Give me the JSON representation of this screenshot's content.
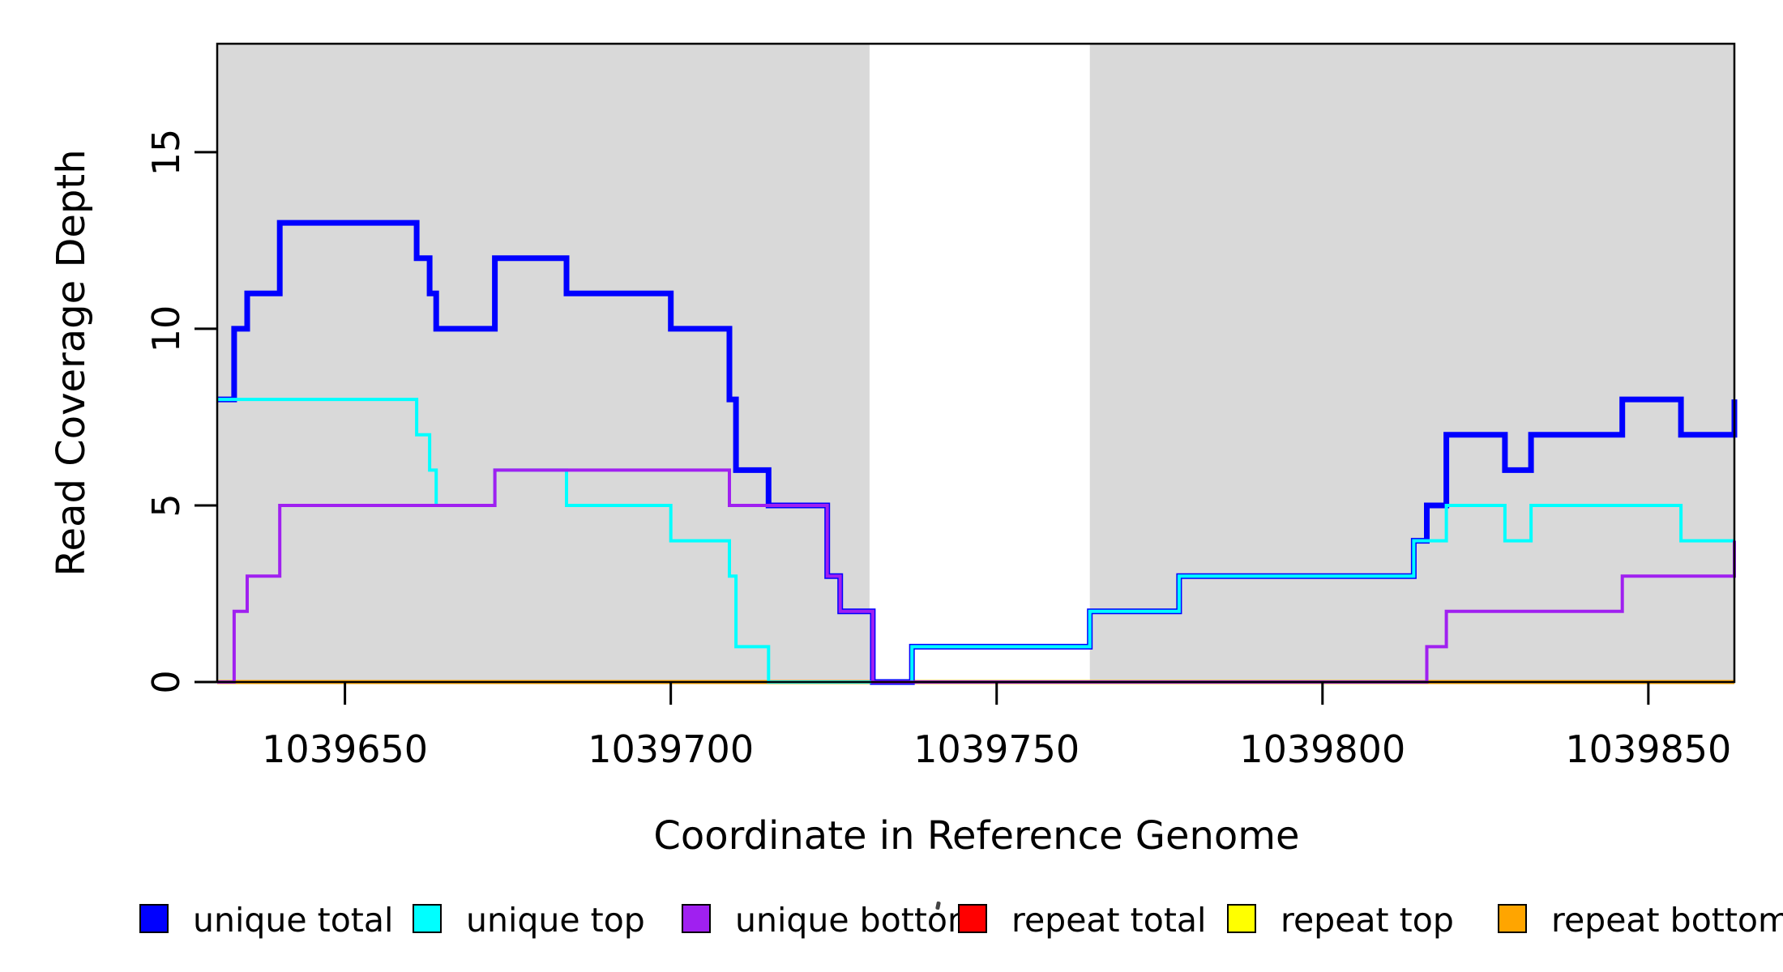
{
  "figure": {
    "x_axis_label": "Coordinate in Reference Genome",
    "y_axis_label": "Read Coverage Depth"
  },
  "x_axis": {
    "ticks": [
      {
        "label": "1039650",
        "value": 1039650
      },
      {
        "label": "1039700",
        "value": 1039700
      },
      {
        "label": "1039750",
        "value": 1039750
      },
      {
        "label": "1039800",
        "value": 1039800
      },
      {
        "label": "1039850",
        "value": 1039850
      }
    ]
  },
  "y_axis": {
    "ticks": [
      {
        "label": "0",
        "value": 0
      },
      {
        "label": "5",
        "value": 5
      },
      {
        "label": "10",
        "value": 10
      },
      {
        "label": "15",
        "value": 15
      }
    ]
  },
  "legend": [
    {
      "label": "unique total",
      "color": "#0000FF"
    },
    {
      "label": "unique top",
      "color": "#00FFFF"
    },
    {
      "label": "unique bottom",
      "color": "#A020F0"
    },
    {
      "label": "repeat total",
      "color": "#FF0000"
    },
    {
      "label": "repeat top",
      "color": "#FFFF00"
    },
    {
      "label": "repeat bottom",
      "color": "#FFA500"
    }
  ],
  "chart_data": {
    "type": "line",
    "style": "step-after",
    "title": "",
    "xlabel": "Coordinate in Reference Genome",
    "ylabel": "Read Coverage Depth",
    "xlim": [
      1039630.4,
      1039863.2
    ],
    "ylim": [
      0,
      18.07
    ],
    "grid": false,
    "legend_position": "bottom",
    "plot_border_color": "#000000",
    "background_bands": {
      "color": "#D9D9D9",
      "regions": [
        [
          1039630.4,
          1039730.5
        ],
        [
          1039764.3,
          1039863.2
        ]
      ]
    },
    "series": [
      {
        "name": "repeat total",
        "color": "#FF0000",
        "width": 3.5,
        "steps": [
          [
            1039630.4,
            0
          ]
        ]
      },
      {
        "name": "repeat top",
        "color": "#FFFF00",
        "width": 3.5,
        "steps": [
          [
            1039630.4,
            0
          ]
        ]
      },
      {
        "name": "repeat bottom",
        "color": "#FFA500",
        "width": 5,
        "steps": [
          [
            1039630.4,
            0
          ]
        ]
      },
      {
        "name": "unique total",
        "color": "#0000FF",
        "width": 7,
        "steps": [
          [
            1039630.4,
            8
          ],
          [
            1039633,
            10
          ],
          [
            1039635,
            11
          ],
          [
            1039640,
            13
          ],
          [
            1039661,
            12
          ],
          [
            1039663,
            11
          ],
          [
            1039664,
            10
          ],
          [
            1039673,
            12
          ],
          [
            1039684,
            11
          ],
          [
            1039700,
            10
          ],
          [
            1039709,
            8
          ],
          [
            1039710,
            6
          ],
          [
            1039715,
            5
          ],
          [
            1039724,
            3
          ],
          [
            1039726,
            2
          ],
          [
            1039731,
            0
          ],
          [
            1039737,
            1
          ],
          [
            1039764.3,
            2
          ],
          [
            1039778,
            3
          ],
          [
            1039814,
            4
          ],
          [
            1039816,
            5
          ],
          [
            1039819,
            7
          ],
          [
            1039828,
            6
          ],
          [
            1039832,
            7
          ],
          [
            1039846,
            8
          ],
          [
            1039855,
            7
          ],
          [
            1039863.2,
            8
          ]
        ]
      },
      {
        "name": "unique top",
        "color": "#00FFFF",
        "width": 4,
        "steps": [
          [
            1039630.4,
            8
          ],
          [
            1039661,
            7
          ],
          [
            1039663,
            6
          ],
          [
            1039664,
            5
          ],
          [
            1039673,
            6
          ],
          [
            1039684,
            5
          ],
          [
            1039700,
            4
          ],
          [
            1039709,
            3
          ],
          [
            1039710,
            1
          ],
          [
            1039715,
            0
          ],
          [
            1039737,
            1
          ],
          [
            1039764.3,
            2
          ],
          [
            1039778,
            3
          ],
          [
            1039814,
            4
          ],
          [
            1039819,
            5
          ],
          [
            1039828,
            4
          ],
          [
            1039832,
            5
          ],
          [
            1039855,
            4
          ]
        ]
      },
      {
        "name": "unique bottom",
        "color": "#A020F0",
        "width": 4,
        "steps": [
          [
            1039630.4,
            0
          ],
          [
            1039633,
            2
          ],
          [
            1039635,
            3
          ],
          [
            1039640,
            5
          ],
          [
            1039673,
            6
          ],
          [
            1039709,
            5
          ],
          [
            1039724,
            3
          ],
          [
            1039726,
            2
          ],
          [
            1039731,
            0
          ],
          [
            1039816,
            1
          ],
          [
            1039819,
            2
          ],
          [
            1039846,
            3
          ],
          [
            1039863.2,
            4
          ]
        ]
      }
    ]
  }
}
